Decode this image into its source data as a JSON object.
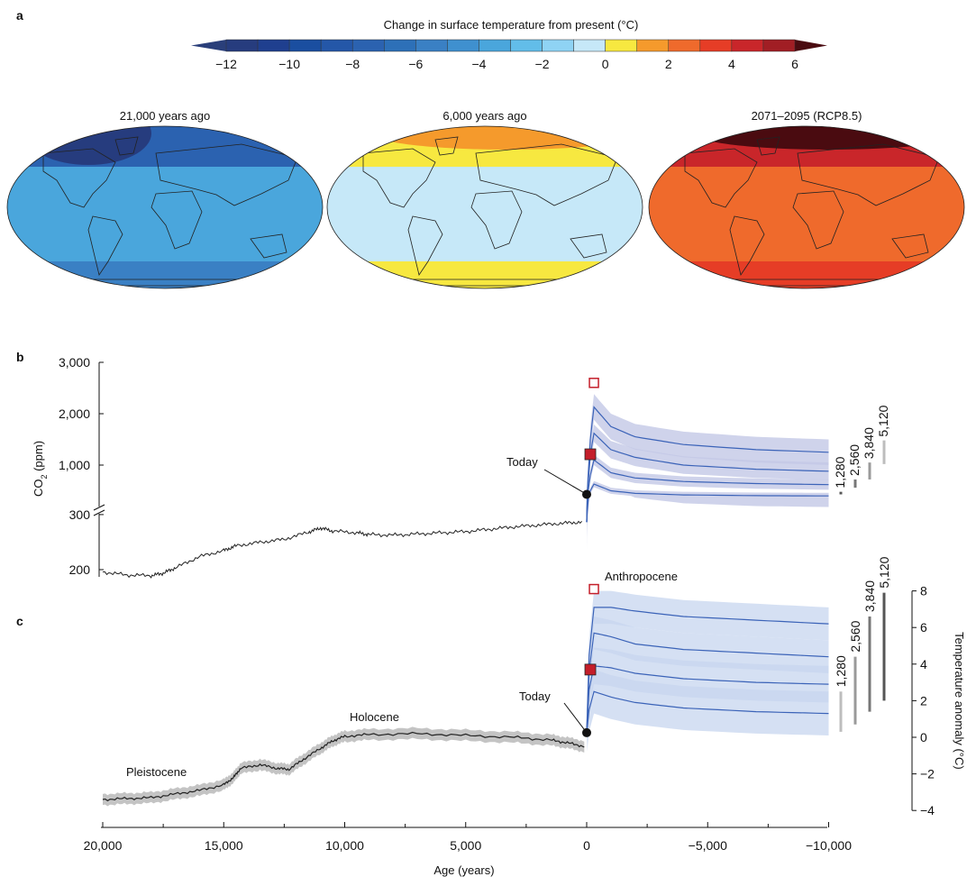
{
  "panels": {
    "a": "a",
    "b": "b",
    "c": "c"
  },
  "colorbar": {
    "title": "Change in surface temperature from present (°C)",
    "range": [
      -12,
      6
    ],
    "ticks": [
      "−12",
      "−10",
      "−8",
      "−6",
      "−4",
      "−2",
      "0",
      "2",
      "4",
      "6"
    ],
    "tick_values": [
      -12,
      -10,
      -8,
      -6,
      -4,
      -2,
      0,
      2,
      4,
      6
    ],
    "low_extend_color": "#2a3f7a",
    "high_extend_color": "#4a0b10",
    "colors": [
      "#263c7e",
      "#1f3f8f",
      "#1a4ea0",
      "#2457a8",
      "#2b62b0",
      "#2d70b8",
      "#3a80c4",
      "#3f90cf",
      "#4aa6dc",
      "#62bde9",
      "#8fd3f4",
      "#c6e8f8",
      "#f7e840",
      "#f59a2c",
      "#ef6a2c",
      "#e63d26",
      "#c9262a",
      "#a11e24"
    ]
  },
  "maps": [
    {
      "title": "21,000 years ago",
      "base": "#4aa6dc",
      "north": "#2b62b0",
      "arctic": "#263c7e",
      "south": "#3a80c4"
    },
    {
      "title": "6,000 years ago",
      "base": "#c6e8f8",
      "north": "#f7e840",
      "arctic": "#f59a2c",
      "south": "#f7e840"
    },
    {
      "title": "2071–2095 (RCP8.5)",
      "base": "#ef6a2c",
      "north": "#c9262a",
      "arctic": "#4a0b10",
      "south": "#e63d26"
    }
  ],
  "chart_data": [
    {
      "type": "line",
      "panel": "b",
      "ylabel": "CO2 (ppm)",
      "ylabel_main": "CO",
      "ylabel_sub": "2",
      "ylabel_tail": " (ppm)",
      "yticks": [
        "3,000",
        "2,000",
        "1,000",
        "300",
        "200"
      ],
      "ytick_values": [
        3000,
        2000,
        1000,
        300,
        200
      ],
      "axis_break": true,
      "paleo": [
        [
          20000,
          196
        ],
        [
          19000,
          191
        ],
        [
          18000,
          190
        ],
        [
          17500,
          194
        ],
        [
          17000,
          203
        ],
        [
          16000,
          222
        ],
        [
          15000,
          232
        ],
        [
          14500,
          240
        ],
        [
          13500,
          246
        ],
        [
          12500,
          251
        ],
        [
          11500,
          263
        ],
        [
          11000,
          270
        ],
        [
          10500,
          265
        ],
        [
          9500,
          262
        ],
        [
          9000,
          259
        ],
        [
          8000,
          258
        ],
        [
          7000,
          260
        ],
        [
          6000,
          262
        ],
        [
          5000,
          264
        ],
        [
          4000,
          268
        ],
        [
          3000,
          272
        ],
        [
          2000,
          275
        ],
        [
          1000,
          278
        ],
        [
          200,
          280
        ]
      ],
      "series": [
        {
          "name": "5,120",
          "points": [
            [
              0,
              280
            ],
            [
              -150,
              1500
            ],
            [
              -300,
              2130
            ],
            [
              -1000,
              1750
            ],
            [
              -2000,
              1550
            ],
            [
              -4000,
              1400
            ],
            [
              -7000,
              1300
            ],
            [
              -10000,
              1250
            ]
          ],
          "uncertainty": 250,
          "range": [
            1020,
            1480
          ]
        },
        {
          "name": "3,840",
          "points": [
            [
              0,
              280
            ],
            [
              -150,
              1200
            ],
            [
              -300,
              1620
            ],
            [
              -1000,
              1300
            ],
            [
              -2000,
              1150
            ],
            [
              -4000,
              1000
            ],
            [
              -7000,
              920
            ],
            [
              -10000,
              880
            ]
          ],
          "uncertainty": 170,
          "range": [
            720,
            1050
          ]
        },
        {
          "name": "2,560",
          "points": [
            [
              0,
              280
            ],
            [
              -150,
              800
            ],
            [
              -300,
              1100
            ],
            [
              -1000,
              850
            ],
            [
              -2000,
              750
            ],
            [
              -4000,
              680
            ],
            [
              -7000,
              640
            ],
            [
              -10000,
              620
            ]
          ],
          "uncertainty": 100,
          "range": [
            560,
            720
          ]
        },
        {
          "name": "1,280",
          "points": [
            [
              0,
              280
            ],
            [
              -150,
              500
            ],
            [
              -300,
              630
            ],
            [
              -1000,
              500
            ],
            [
              -2000,
              450
            ],
            [
              -4000,
              420
            ],
            [
              -7000,
              405
            ],
            [
              -10000,
              400
            ]
          ],
          "uncertainty": 60,
          "range": [
            430,
            480
          ]
        }
      ],
      "markers": {
        "open_square": [
          -300,
          2600
        ],
        "filled_square": [
          -150,
          1210
        ],
        "today": [
          0,
          430
        ]
      },
      "annotation_today": "Today"
    },
    {
      "type": "line",
      "panel": "c",
      "xlabel": "Age (years)",
      "xticks": [
        "20,000",
        "15,000",
        "10,000",
        "5,000",
        "0",
        "−5,000",
        "−10,000"
      ],
      "xtick_values": [
        20000,
        15000,
        10000,
        5000,
        0,
        -5000,
        -10000
      ],
      "xlim": [
        20000,
        -10000
      ],
      "ylabel": "Temperature anomaly (°C)",
      "yticks": [
        "8",
        "6",
        "4",
        "2",
        "0",
        "−2",
        "−4"
      ],
      "ytick_values": [
        8,
        6,
        4,
        2,
        0,
        -2,
        -4
      ],
      "ylim": [
        -4,
        8
      ],
      "paleo": [
        [
          20000,
          -3.4
        ],
        [
          19000,
          -3.35
        ],
        [
          18000,
          -3.3
        ],
        [
          17000,
          -3.1
        ],
        [
          16000,
          -2.9
        ],
        [
          15000,
          -2.6
        ],
        [
          14600,
          -2.2
        ],
        [
          14300,
          -1.7
        ],
        [
          13500,
          -1.5
        ],
        [
          12800,
          -1.7
        ],
        [
          12300,
          -1.75
        ],
        [
          11700,
          -1.2
        ],
        [
          11000,
          -0.6
        ],
        [
          10500,
          -0.2
        ],
        [
          10000,
          0.05
        ],
        [
          9000,
          0.15
        ],
        [
          7000,
          0.2
        ],
        [
          5000,
          0.1
        ],
        [
          3000,
          0.0
        ],
        [
          1500,
          -0.15
        ],
        [
          800,
          -0.3
        ],
        [
          100,
          -0.5
        ]
      ],
      "series": [
        {
          "name": "5,120",
          "points": [
            [
              0,
              0.2
            ],
            [
              -100,
              4.5
            ],
            [
              -300,
              7.1
            ],
            [
              -1000,
              7.1
            ],
            [
              -2000,
              6.9
            ],
            [
              -4000,
              6.6
            ],
            [
              -7000,
              6.4
            ],
            [
              -10000,
              6.2
            ]
          ],
          "uncertainty": 0.9,
          "range": [
            2.0,
            7.9
          ]
        },
        {
          "name": "3,840",
          "points": [
            [
              0,
              0.2
            ],
            [
              -100,
              3.6
            ],
            [
              -300,
              5.7
            ],
            [
              -1000,
              5.5
            ],
            [
              -2000,
              5.1
            ],
            [
              -4000,
              4.8
            ],
            [
              -7000,
              4.6
            ],
            [
              -10000,
              4.4
            ]
          ],
          "uncertainty": 0.9,
          "range": [
            1.4,
            6.6
          ]
        },
        {
          "name": "2,560",
          "points": [
            [
              0,
              0.2
            ],
            [
              -100,
              2.6
            ],
            [
              -300,
              3.9
            ],
            [
              -1000,
              3.8
            ],
            [
              -2000,
              3.5
            ],
            [
              -4000,
              3.2
            ],
            [
              -7000,
              3.0
            ],
            [
              -10000,
              2.9
            ]
          ],
          "uncertainty": 1.0,
          "range": [
            0.7,
            4.4
          ]
        },
        {
          "name": "1,280",
          "points": [
            [
              0,
              0.2
            ],
            [
              -100,
              1.5
            ],
            [
              -300,
              2.5
            ],
            [
              -1000,
              2.2
            ],
            [
              -2000,
              1.9
            ],
            [
              -4000,
              1.6
            ],
            [
              -7000,
              1.4
            ],
            [
              -10000,
              1.3
            ]
          ],
          "uncertainty": 1.2,
          "range": [
            0.3,
            2.5
          ]
        }
      ],
      "markers": {
        "open_square": [
          -300,
          8.1
        ],
        "filled_square": [
          -150,
          3.7
        ],
        "today": [
          0,
          0.25
        ]
      },
      "annotations": {
        "pleistocene": "Pleistocene",
        "holocene": "Holocene",
        "anthropocene": "Anthropocene",
        "today": "Today"
      }
    }
  ],
  "style": {
    "line": "#3b63b8",
    "band": "#c7d5ef",
    "band_b": "#c3c8e6",
    "paleo": "#222222",
    "paleo_band": "#c4c4c4",
    "marker_red": "#c41e2a",
    "range_colors": [
      "#bdbdbd",
      "#9a9a9a",
      "#777777",
      "#555555"
    ]
  }
}
